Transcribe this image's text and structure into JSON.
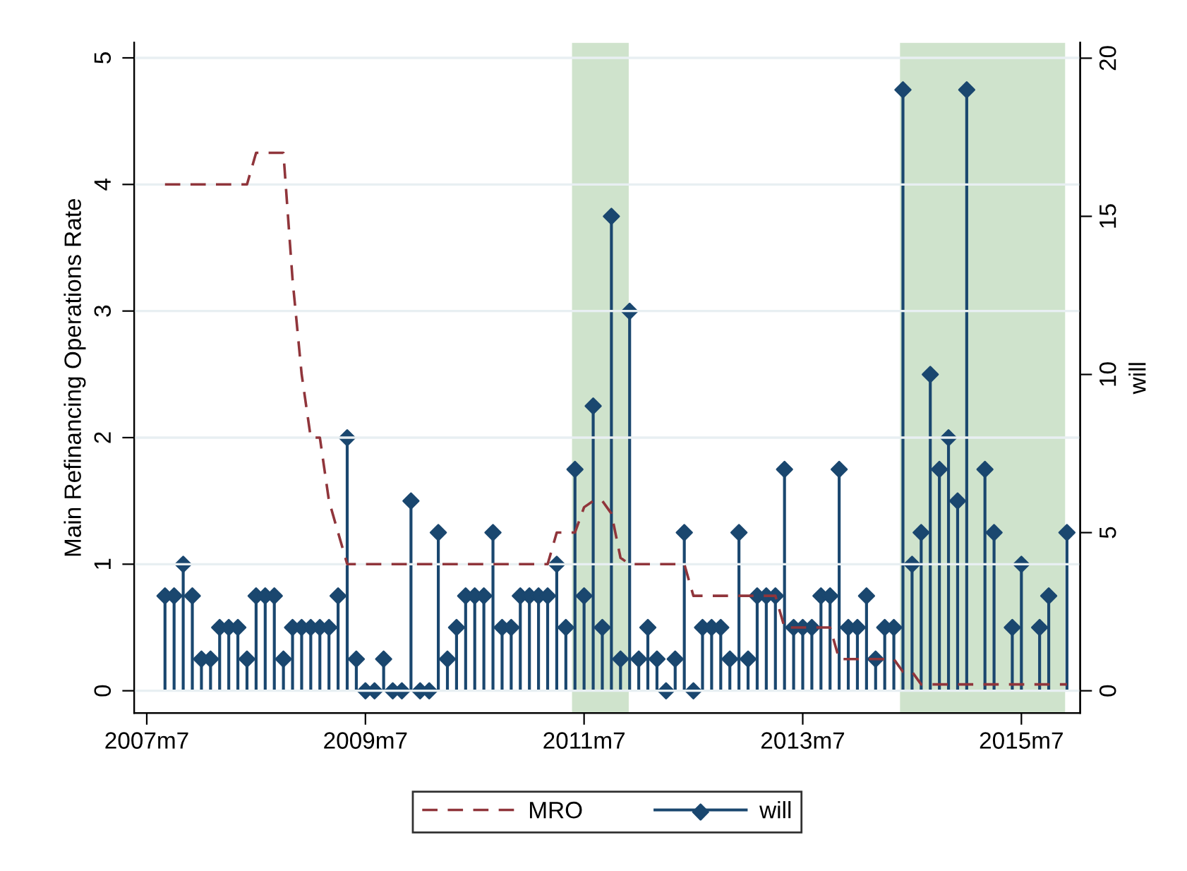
{
  "chart_data": {
    "type": "line",
    "ylabel": "Main Refinancing Operations Rate",
    "y2label": "will",
    "x": [
      "2007-09",
      "2007-10",
      "2007-11",
      "2007-12",
      "2008-01",
      "2008-02",
      "2008-03",
      "2008-04",
      "2008-05",
      "2008-06",
      "2008-07",
      "2008-08",
      "2008-09",
      "2008-10",
      "2008-11",
      "2008-12",
      "2009-01",
      "2009-02",
      "2009-03",
      "2009-04",
      "2009-05",
      "2009-06",
      "2009-07",
      "2009-08",
      "2009-09",
      "2009-10",
      "2009-11",
      "2009-12",
      "2010-01",
      "2010-02",
      "2010-03",
      "2010-04",
      "2010-05",
      "2010-06",
      "2010-07",
      "2010-08",
      "2010-09",
      "2010-10",
      "2010-11",
      "2010-12",
      "2011-01",
      "2011-02",
      "2011-03",
      "2011-04",
      "2011-05",
      "2011-06",
      "2011-07",
      "2011-08",
      "2011-09",
      "2011-10",
      "2011-11",
      "2011-12",
      "2012-01",
      "2012-02",
      "2012-03",
      "2012-04",
      "2012-05",
      "2012-06",
      "2012-07",
      "2012-08",
      "2012-09",
      "2012-10",
      "2012-11",
      "2012-12",
      "2013-01",
      "2013-02",
      "2013-03",
      "2013-04",
      "2013-05",
      "2013-06",
      "2013-07",
      "2013-08",
      "2013-09",
      "2013-10",
      "2013-11",
      "2013-12",
      "2014-01",
      "2014-02",
      "2014-03",
      "2014-04",
      "2014-05",
      "2014-06",
      "2014-07",
      "2014-08",
      "2014-09",
      "2014-10",
      "2014-11",
      "2014-12",
      "2015-01",
      "2015-02",
      "2015-03",
      "2015-04",
      "2015-05",
      "2015-06",
      "2015-07",
      "2015-08",
      "2015-09",
      "2015-10",
      "2015-11",
      "2015-12"
    ],
    "series": [
      {
        "name": "MRO",
        "axis": "y",
        "color": "#90353b",
        "line_style": "dashed",
        "marker": "none",
        "values": [
          4.0,
          4.0,
          4.0,
          4.0,
          4.0,
          4.0,
          4.0,
          4.0,
          4.0,
          4.0,
          4.25,
          4.25,
          4.25,
          4.25,
          3.25,
          2.5,
          2.0,
          2.0,
          1.5,
          1.25,
          1.0,
          1.0,
          1.0,
          1.0,
          1.0,
          1.0,
          1.0,
          1.0,
          1.0,
          1.0,
          1.0,
          1.0,
          1.0,
          1.0,
          1.0,
          1.0,
          1.0,
          1.0,
          1.0,
          1.0,
          1.0,
          1.0,
          1.0,
          1.25,
          1.25,
          1.25,
          1.45,
          1.5,
          1.5,
          1.4,
          1.05,
          1.0,
          1.0,
          1.0,
          1.0,
          1.0,
          1.0,
          1.0,
          0.75,
          0.75,
          0.75,
          0.75,
          0.75,
          0.75,
          0.75,
          0.75,
          0.75,
          0.75,
          0.5,
          0.5,
          0.5,
          0.5,
          0.5,
          0.5,
          0.25,
          0.25,
          0.25,
          0.25,
          0.25,
          0.25,
          0.25,
          0.15,
          0.15,
          0.05,
          0.05,
          0.05,
          0.05,
          0.05,
          0.05,
          0.05,
          0.05,
          0.05,
          0.05,
          0.05,
          0.05,
          0.05,
          0.05,
          0.05,
          0.05,
          0.05
        ]
      },
      {
        "name": "will",
        "type": "lollipop",
        "axis": "y2",
        "color": "#1a476f",
        "marker": "diamond",
        "values": [
          3,
          3,
          4,
          3,
          1,
          1,
          2,
          2,
          2,
          1,
          3,
          3,
          3,
          1,
          2,
          2,
          2,
          2,
          2,
          3,
          8,
          1,
          0,
          0,
          1,
          0,
          0,
          6,
          0,
          0,
          5,
          1,
          2,
          3,
          3,
          3,
          5,
          2,
          2,
          3,
          3,
          3,
          3,
          4,
          2,
          7,
          3,
          9,
          2,
          15,
          1,
          12,
          1,
          2,
          1,
          0,
          1,
          5,
          0,
          2,
          2,
          2,
          1,
          5,
          1,
          3,
          3,
          3,
          7,
          2,
          2,
          2,
          3,
          3,
          7,
          2,
          2,
          3,
          1,
          2,
          2,
          19,
          4,
          5,
          10,
          7,
          8,
          6,
          19,
          null,
          7,
          5,
          null,
          2,
          4,
          null,
          2,
          3,
          null,
          5
        ]
      }
    ],
    "xlim": [
      "2007-05-20",
      "2016-01-15"
    ],
    "xticks": [
      {
        "value": "2007-07",
        "label": "2007m7"
      },
      {
        "value": "2009-07",
        "label": "2009m7"
      },
      {
        "value": "2011-07",
        "label": "2011m7"
      },
      {
        "value": "2013-07",
        "label": "2013m7"
      },
      {
        "value": "2015-07",
        "label": "2015m7"
      }
    ],
    "ylim": [
      -0.175,
      5.12
    ],
    "yticks": [
      0,
      1,
      2,
      3,
      4,
      5
    ],
    "y2lim": [
      -0.7,
      20.49
    ],
    "y2ticks": [
      0,
      5,
      10,
      15,
      20
    ],
    "bands": [
      {
        "axis": "x",
        "from": "2011-05-22",
        "to": "2011-11-28",
        "color": "#cfe3cc"
      },
      {
        "axis": "x",
        "from": "2014-05-22",
        "to": "2015-11-25",
        "color": "#cfe3cc"
      }
    ],
    "grid": "y",
    "legend": "bottom"
  }
}
